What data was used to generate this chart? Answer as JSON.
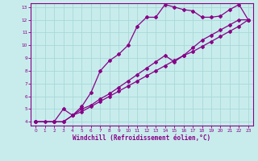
{
  "xlabel": "Windchill (Refroidissement éolien,°C)",
  "bg_color": "#c8ecec",
  "grid_color": "#a8d8d8",
  "line_color": "#880088",
  "xlim": [
    -0.5,
    23.5
  ],
  "ylim": [
    3.7,
    13.3
  ],
  "xticks": [
    0,
    1,
    2,
    3,
    4,
    5,
    6,
    7,
    8,
    9,
    10,
    11,
    12,
    13,
    14,
    15,
    16,
    17,
    18,
    19,
    20,
    21,
    22,
    23
  ],
  "yticks": [
    4,
    5,
    6,
    7,
    8,
    9,
    10,
    11,
    12,
    13
  ],
  "line1_x": [
    0,
    1,
    2,
    3,
    4,
    5,
    6,
    7,
    8,
    9,
    10,
    11,
    12,
    13,
    14,
    15,
    16,
    17,
    18,
    19,
    20,
    21,
    22,
    23
  ],
  "line1_y": [
    4,
    4,
    4,
    5,
    4.5,
    5.2,
    6.3,
    8.0,
    8.8,
    9.3,
    10.0,
    11.5,
    12.2,
    12.2,
    13.2,
    13.0,
    12.8,
    12.7,
    12.2,
    12.2,
    12.3,
    12.8,
    13.2,
    12.0
  ],
  "line2_x": [
    0,
    2,
    3,
    4,
    5,
    6,
    7,
    8,
    9,
    10,
    11,
    12,
    13,
    14,
    15,
    16,
    17,
    18,
    19,
    20,
    21,
    22,
    23
  ],
  "line2_y": [
    4,
    4,
    4,
    4.5,
    5.0,
    5.3,
    5.8,
    6.2,
    6.7,
    7.2,
    7.7,
    8.2,
    8.7,
    9.2,
    8.7,
    9.2,
    9.8,
    10.4,
    10.8,
    11.2,
    11.6,
    12.0,
    12.0
  ],
  "line3_x": [
    0,
    2,
    3,
    4,
    5,
    6,
    7,
    8,
    9,
    10,
    11,
    12,
    13,
    14,
    15,
    16,
    17,
    18,
    19,
    20,
    21,
    22,
    23
  ],
  "line3_y": [
    4,
    4,
    4,
    4.5,
    4.8,
    5.2,
    5.6,
    6.0,
    6.4,
    6.8,
    7.2,
    7.6,
    8.0,
    8.4,
    8.8,
    9.2,
    9.5,
    9.9,
    10.3,
    10.7,
    11.1,
    11.5,
    12.0
  ]
}
